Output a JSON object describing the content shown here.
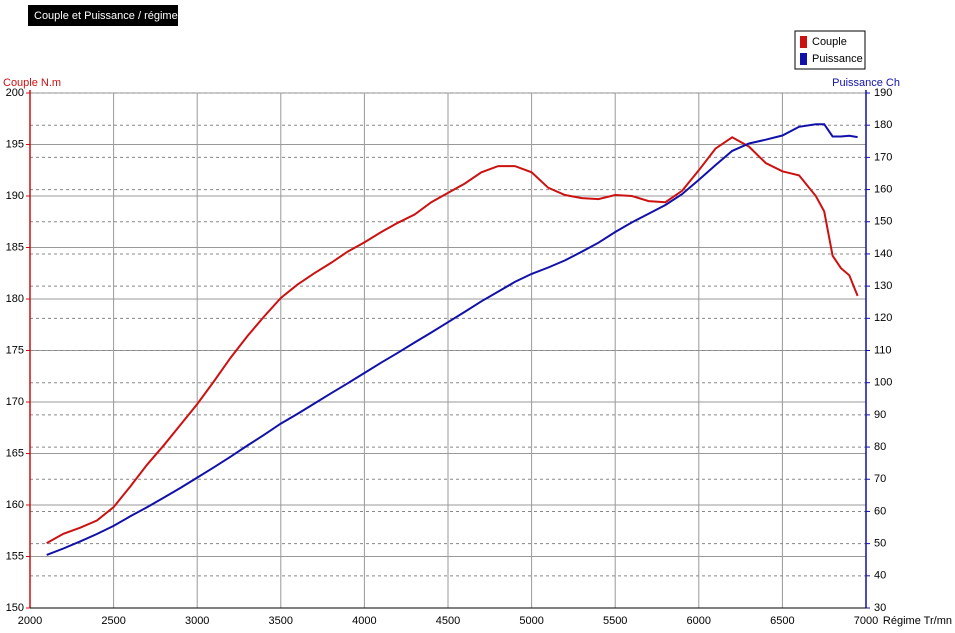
{
  "chart_data": {
    "type": "line",
    "title": "Couple et Puissance / régime",
    "xlabel": "Régime Tr/mn",
    "ylabel": "Couple N.m",
    "y2label": "Puissance Ch",
    "x": [
      2100,
      2200,
      2300,
      2400,
      2500,
      2600,
      2700,
      2800,
      2900,
      3000,
      3100,
      3200,
      3300,
      3400,
      3500,
      3600,
      3700,
      3800,
      3900,
      4000,
      4100,
      4200,
      4300,
      4400,
      4500,
      4600,
      4700,
      4800,
      4900,
      5000,
      5100,
      5200,
      5300,
      5400,
      5500,
      5600,
      5700,
      5800,
      5900,
      6000,
      6100,
      6200,
      6300,
      6400,
      6500,
      6600,
      6700,
      6750,
      6800,
      6850,
      6900,
      6950
    ],
    "series": [
      {
        "name": "Couple",
        "color": "#cc1111",
        "axis": "y",
        "values": [
          156.3,
          157.2,
          157.8,
          158.5,
          159.8,
          161.8,
          163.9,
          165.8,
          167.8,
          169.8,
          172,
          174.3,
          176.4,
          178.3,
          180.1,
          181.4,
          182.5,
          183.5,
          184.6,
          185.5,
          186.5,
          187.4,
          188.2,
          189.4,
          190.3,
          191.2,
          192.3,
          192.9,
          192.9,
          192.3,
          190.8,
          190.1,
          189.8,
          189.7,
          190.1,
          190,
          189.5,
          189.4,
          190.5,
          192.5,
          194.6,
          195.7,
          194.8,
          193.2,
          192.4,
          192,
          190,
          188.5,
          184.2,
          183,
          182.3,
          180.3
        ]
      },
      {
        "name": "Puissance",
        "color": "#1111aa",
        "axis": "y2",
        "values": [
          46.5,
          48.5,
          50.7,
          53,
          55.5,
          58.5,
          61.3,
          64.3,
          67.3,
          70.5,
          73.7,
          77,
          80.5,
          83.8,
          87.3,
          90.3,
          93.5,
          96.7,
          99.8,
          103,
          106.2,
          109.3,
          112.5,
          115.6,
          118.8,
          122,
          125.3,
          128.3,
          131.3,
          133.8,
          135.8,
          138,
          140.7,
          143.5,
          146.8,
          149.8,
          152.5,
          155.2,
          158.6,
          163,
          167.6,
          172,
          174.3,
          175.5,
          176.8,
          179.5,
          180.3,
          180.3,
          176.5,
          176.5,
          176.7,
          176.3
        ]
      }
    ],
    "xlim": [
      2000,
      7000
    ],
    "xticks": [
      2000,
      2500,
      3000,
      3500,
      4000,
      4500,
      5000,
      5500,
      6000,
      6500,
      7000
    ],
    "ylim": [
      150,
      200
    ],
    "yticks": [
      150,
      155,
      160,
      165,
      170,
      175,
      180,
      185,
      190,
      195,
      200
    ],
    "y2lim": [
      30,
      190
    ],
    "y2ticks": [
      30,
      40,
      50,
      60,
      70,
      80,
      90,
      100,
      110,
      120,
      130,
      140,
      150,
      160,
      170,
      180,
      190
    ],
    "grid": true,
    "legend": "top-right"
  }
}
